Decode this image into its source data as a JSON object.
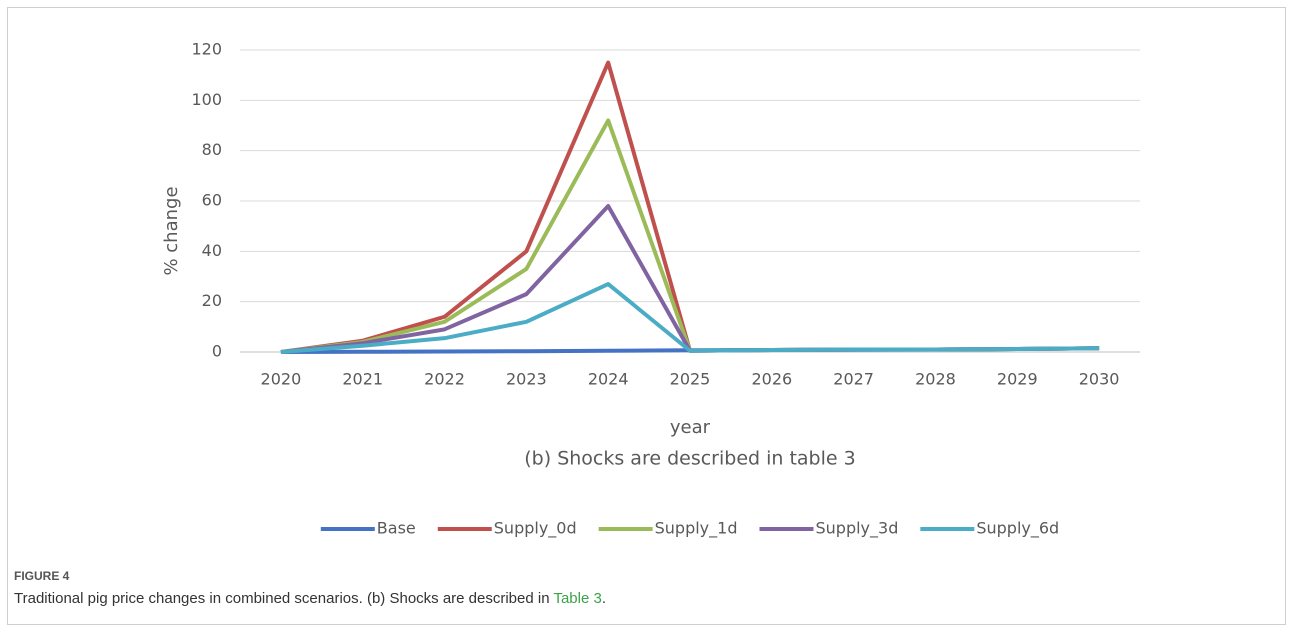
{
  "chart_data": {
    "type": "line",
    "subtitle": "(b) Shocks are described in table 3",
    "x_label": "year",
    "y_label": "% change",
    "categories": [
      "2020",
      "2021",
      "2022",
      "2023",
      "2024",
      "2025",
      "2026",
      "2027",
      "2028",
      "2029",
      "2030"
    ],
    "series": [
      {
        "name": "Base",
        "color": "#4472c4",
        "values": [
          0,
          0.1,
          0.2,
          0.3,
          0.5,
          0.7,
          0.8,
          0.9,
          1.0,
          1.2,
          1.5
        ]
      },
      {
        "name": "Supply_0d",
        "color": "#c0504d",
        "values": [
          0,
          4.5,
          14,
          40,
          115,
          0.5,
          0.8,
          1.0,
          1.0,
          1.2,
          1.5
        ]
      },
      {
        "name": "Supply_1d",
        "color": "#9bbb59",
        "values": [
          0,
          4,
          12,
          33,
          92,
          0.5,
          0.8,
          1.0,
          1.0,
          1.2,
          1.5
        ]
      },
      {
        "name": "Supply_3d",
        "color": "#8064a2",
        "values": [
          0,
          3.5,
          9,
          23,
          58,
          0.5,
          0.8,
          1.0,
          1.0,
          1.2,
          1.5
        ]
      },
      {
        "name": "Supply_6d",
        "color": "#4bacc6",
        "values": [
          0,
          2.5,
          5.5,
          12,
          27,
          0.5,
          0.8,
          1.0,
          1.0,
          1.2,
          1.5
        ]
      }
    ],
    "ylim": [
      0,
      120
    ],
    "yticks": [
      0,
      20,
      40,
      60,
      80,
      100,
      120
    ],
    "grid": true,
    "legend": "bottom"
  },
  "caption": {
    "label": "FIGURE 4",
    "text": "Traditional pig price changes in combined scenarios. (b) Shocks are described in ",
    "link": "Table 3",
    "end": "."
  }
}
